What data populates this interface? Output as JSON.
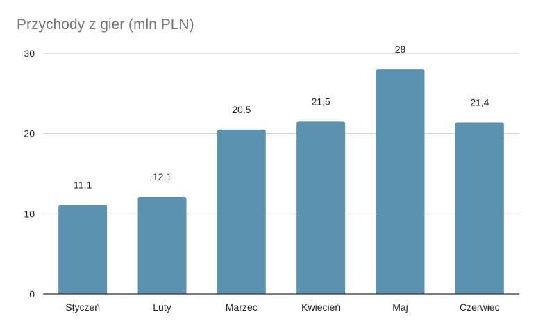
{
  "chart_data": {
    "type": "bar",
    "title": "Przychody z gier (mln PLN)",
    "categories": [
      "Styczeń",
      "Luty",
      "Marzec",
      "Kwiecień",
      "Maj",
      "Czerwiec"
    ],
    "values": [
      11.1,
      12.1,
      20.5,
      21.5,
      28,
      21.4
    ],
    "value_labels": [
      "11,1",
      "12,1",
      "20,5",
      "21,5",
      "28",
      "21,4"
    ],
    "ylim": [
      0,
      30
    ],
    "yticks": [
      0,
      10,
      20,
      30
    ],
    "grid": true,
    "legend": "none",
    "bar_color": "#5b92b0",
    "grid_color": "#cccccc",
    "axis_color": "#333333"
  }
}
